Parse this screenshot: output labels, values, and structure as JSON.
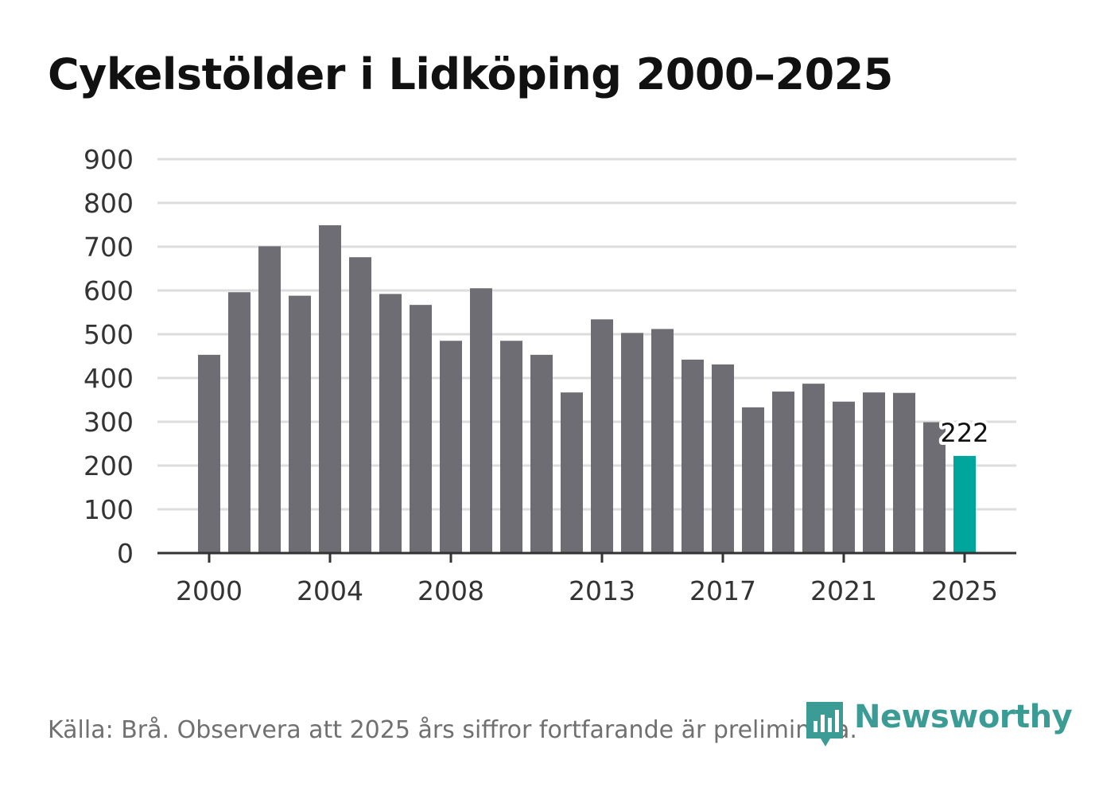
{
  "chart_data": {
    "type": "bar",
    "title": "Cykelstölder i Lidköping 2000–2025",
    "xlabel": "",
    "ylabel": "",
    "ylim": [
      0,
      900
    ],
    "yticks": [
      0,
      100,
      200,
      300,
      400,
      500,
      600,
      700,
      800,
      900
    ],
    "xtick_labels": [
      "2000",
      "2004",
      "2008",
      "2013",
      "2017",
      "2021",
      "2025"
    ],
    "categories": [
      "2000",
      "2001",
      "2002",
      "2003",
      "2004",
      "2005",
      "2006",
      "2007",
      "2008",
      "2009",
      "2010",
      "2011",
      "2012",
      "2013",
      "2014",
      "2015",
      "2016",
      "2017",
      "2018",
      "2019",
      "2020",
      "2021",
      "2022",
      "2023",
      "2024",
      "2025"
    ],
    "values": [
      453,
      596,
      701,
      588,
      749,
      676,
      592,
      567,
      485,
      605,
      485,
      453,
      367,
      534,
      503,
      512,
      442,
      431,
      333,
      369,
      387,
      346,
      367,
      366,
      299,
      222
    ],
    "highlight_index": 25,
    "highlight_label": "222",
    "grid": true,
    "colors": {
      "bar": "#6e6d74",
      "highlight": "#00a69c",
      "grid": "#dddddd",
      "axis": "#333333"
    }
  },
  "footer": {
    "source": "Källa: Brå. Observera att 2025 års siffror fortfarande är preliminära."
  },
  "logo": {
    "text": "Newsworthy",
    "icon": "newsworthy-logo-icon",
    "color": "#3a9c94"
  }
}
